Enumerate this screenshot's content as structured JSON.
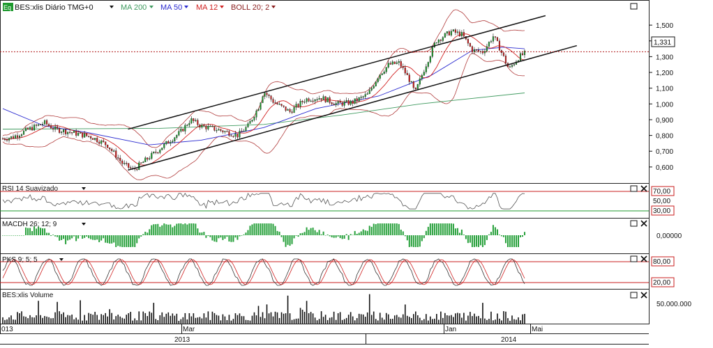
{
  "header": {
    "eq_badge": "Eq",
    "symbol": "BES:xlis Diário TMG+0",
    "indicators": [
      {
        "label": "MA 200",
        "color": "#3f9a5f"
      },
      {
        "label": "MA 50",
        "color": "#2b2bd0"
      },
      {
        "label": "MA 12",
        "color": "#d02020"
      },
      {
        "label": "BOLL 20; 2",
        "color": "#8a1e1e"
      }
    ]
  },
  "price_axis": {
    "ticks": [
      "1,500",
      "1,400",
      "1,300",
      "1,200",
      "1,100",
      "1,000",
      "0,900",
      "0,800",
      "0,700",
      "0,600"
    ],
    "last_price": "1,331"
  },
  "panels": {
    "rsi": {
      "title": "RSI 14 Suavizado",
      "upper": "70,00",
      "lower": "30,00",
      "mid": "50,00"
    },
    "macd": {
      "title": "MACDH 26; 12; 9",
      "zero": "0,00000"
    },
    "pks": {
      "title": "PKS 9; 5; 5",
      "upper": "80,00",
      "lower": "20,00"
    },
    "volume": {
      "title": "BES:xlis Volume",
      "tick": "50.000.000"
    }
  },
  "time_axis": {
    "months": [
      "013",
      "Mar",
      "Jan",
      "Mai"
    ],
    "years": [
      "2013",
      "2014"
    ]
  },
  "colors": {
    "candle_up": "#1e9a2e",
    "candle_down": "#d01e1e",
    "band_upper": "#b03a3a",
    "ma200": "#3f9a5f",
    "ma50": "#2b2bd0",
    "ma12": "#d02020",
    "rsi_line": "#555555",
    "level_upper": "#c81e1e",
    "level_lower": "#1e9a2e",
    "macd_bar": "#26a03a",
    "pks_k": "#333333",
    "pks_d": "#d02020",
    "volume_bar": "#111111",
    "last_price_line": "#b01818"
  },
  "chart_data": {
    "type": "candlestick",
    "title": "BES:xlis Diário TMG+0",
    "x_range": [
      "2012-12",
      "2014-04"
    ],
    "ylim": [
      0.52,
      1.58
    ],
    "y_scale": "linear",
    "grid": false,
    "series": [
      {
        "name": "MA 200",
        "values": [
          [
            0,
            0.84
          ],
          [
            0.3,
            0.845
          ],
          [
            0.5,
            0.87
          ],
          [
            0.65,
            0.93
          ],
          [
            0.8,
            1.0
          ],
          [
            1.0,
            1.07
          ]
        ]
      },
      {
        "name": "MA 50",
        "values": [
          [
            0,
            0.97
          ],
          [
            0.08,
            0.86
          ],
          [
            0.16,
            0.82
          ],
          [
            0.28,
            0.74
          ],
          [
            0.38,
            0.77
          ],
          [
            0.5,
            0.85
          ],
          [
            0.6,
            0.97
          ],
          [
            0.72,
            1.05
          ],
          [
            0.82,
            1.18
          ],
          [
            0.9,
            1.34
          ],
          [
            0.96,
            1.36
          ],
          [
            1.0,
            1.35
          ]
        ]
      }
    ],
    "price_path": [
      [
        0,
        0.78
      ],
      [
        0.02,
        0.79
      ],
      [
        0.05,
        0.84
      ],
      [
        0.08,
        0.88
      ],
      [
        0.1,
        0.84
      ],
      [
        0.13,
        0.82
      ],
      [
        0.17,
        0.79
      ],
      [
        0.2,
        0.74
      ],
      [
        0.23,
        0.62
      ],
      [
        0.25,
        0.58
      ],
      [
        0.28,
        0.66
      ],
      [
        0.31,
        0.74
      ],
      [
        0.34,
        0.82
      ],
      [
        0.36,
        0.9
      ],
      [
        0.38,
        0.86
      ],
      [
        0.42,
        0.83
      ],
      [
        0.45,
        0.8
      ],
      [
        0.47,
        0.86
      ],
      [
        0.49,
        0.98
      ],
      [
        0.5,
        1.08
      ],
      [
        0.52,
        1.01
      ],
      [
        0.55,
        0.95
      ],
      [
        0.58,
        1.03
      ],
      [
        0.61,
        1.04
      ],
      [
        0.64,
        1.0
      ],
      [
        0.67,
        1.01
      ],
      [
        0.7,
        1.06
      ],
      [
        0.72,
        1.18
      ],
      [
        0.74,
        1.25
      ],
      [
        0.76,
        1.26
      ],
      [
        0.78,
        1.15
      ],
      [
        0.79,
        1.07
      ],
      [
        0.81,
        1.24
      ],
      [
        0.83,
        1.4
      ],
      [
        0.86,
        1.46
      ],
      [
        0.88,
        1.44
      ],
      [
        0.9,
        1.34
      ],
      [
        0.92,
        1.33
      ],
      [
        0.94,
        1.43
      ],
      [
        0.95,
        1.37
      ],
      [
        0.97,
        1.22
      ],
      [
        0.99,
        1.3
      ],
      [
        1.0,
        1.32
      ]
    ],
    "trend_channel": {
      "upper": [
        [
          0.24,
          0.84
        ],
        [
          1.04,
          1.56
        ]
      ],
      "lower": [
        [
          0.24,
          0.58
        ],
        [
          1.1,
          1.37
        ]
      ]
    },
    "last_price": 1.331,
    "rsi_levels": [
      70,
      50,
      30
    ],
    "pks_levels": [
      80,
      20
    ]
  }
}
